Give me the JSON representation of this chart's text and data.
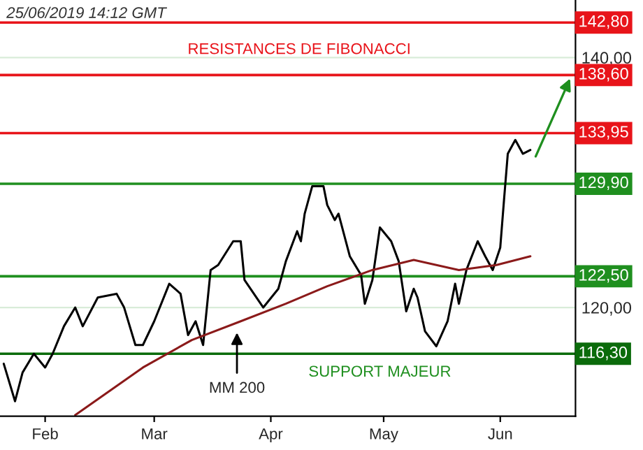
{
  "chart_data": {
    "type": "line",
    "annotations": [
      "25/06/2019 14:12 GMT",
      "RESISTANCES DE FIBONACCI",
      "SUPPORT MAJEUR",
      {
        "text": "MM 200",
        "x": "2019-04-07",
        "y": 118.3
      }
    ],
    "series": [
      {
        "color": "#000000",
        "x": [
          "2019-02-04",
          "2019-02-07",
          "2019-02-09",
          "2019-02-12",
          "2019-02-15",
          "2019-02-17",
          "2019-02-20",
          "2019-02-23",
          "2019-02-25",
          "2019-03-01",
          "2019-03-06",
          "2019-03-08",
          "2019-03-11",
          "2019-03-13",
          "2019-03-16",
          "2019-03-20",
          "2019-03-23",
          "2019-03-25",
          "2019-03-27",
          "2019-03-29",
          "2019-03-31",
          "2019-04-02",
          "2019-04-06",
          "2019-04-08",
          "2019-04-09",
          "2019-04-14",
          "2019-04-18",
          "2019-04-20",
          "2019-04-23",
          "2019-04-24",
          "2019-04-25",
          "2019-04-27",
          "2019-04-30",
          "2019-05-01",
          "2019-05-03",
          "2019-05-04",
          "2019-05-07",
          "2019-05-10",
          "2019-05-11",
          "2019-05-13",
          "2019-05-15",
          "2019-05-18",
          "2019-05-20",
          "2019-05-22",
          "2019-05-24",
          "2019-05-25",
          "2019-05-27",
          "2019-05-30",
          "2019-06-02",
          "2019-06-04",
          "2019-06-05",
          "2019-06-07",
          "2019-06-10",
          "2019-06-12",
          "2019-06-14",
          "2019-06-16",
          "2019-06-17",
          "2019-06-18",
          "2019-06-20",
          "2019-06-22",
          "2019-06-24"
        ],
        "values": [
          115.5,
          112.5,
          114.8,
          116.3,
          115.2,
          116.3,
          118.5,
          120.0,
          118.5,
          120.8,
          121.1,
          120.0,
          117.0,
          117.0,
          118.9,
          121.9,
          121.1,
          117.8,
          118.9,
          117.0,
          123.0,
          123.4,
          125.3,
          125.3,
          122.2,
          120.0,
          121.5,
          123.7,
          126.1,
          125.3,
          127.5,
          129.7,
          129.7,
          128.2,
          127.0,
          127.5,
          124.1,
          122.6,
          120.3,
          122.2,
          126.4,
          125.3,
          123.7,
          119.7,
          121.5,
          120.8,
          118.1,
          116.9,
          118.9,
          121.9,
          120.3,
          123.0,
          125.3,
          124.1,
          123.0,
          124.8,
          128.6,
          132.3,
          133.4,
          132.3,
          132.6
        ]
      },
      {
        "color": "#8b1a1a",
        "x": [
          "2019-02-23",
          "2019-03-13",
          "2019-03-26",
          "2019-04-08",
          "2019-04-20",
          "2019-05-01",
          "2019-05-13",
          "2019-05-24",
          "2019-06-05",
          "2019-06-15",
          "2019-06-24"
        ],
        "values": [
          111.4,
          115.2,
          117.4,
          118.9,
          120.3,
          121.7,
          123.0,
          123.8,
          123.0,
          123.4,
          124.1
        ]
      }
    ],
    "xlim": [
      "2019-02-03",
      "2019-07-06"
    ],
    "xticks": [
      {
        "value": "2019-02-15",
        "label": "Feb"
      },
      {
        "value": "2019-03-16",
        "label": "Mar"
      },
      {
        "value": "2019-04-16",
        "label": "Apr"
      },
      {
        "value": "2019-05-16",
        "label": "May"
      },
      {
        "value": "2019-06-16",
        "label": "Jun"
      }
    ],
    "ylim": [
      111.3,
      144.6
    ],
    "yticks": [
      {
        "value": 120,
        "label": "120,00"
      },
      {
        "value": 140,
        "label": "140,00"
      }
    ],
    "grid": "y",
    "ref_lines": [
      {
        "axis": "y",
        "value": 142.8,
        "label": "142,80",
        "color": "#e8141a"
      },
      {
        "axis": "y",
        "value": 138.6,
        "label": "138,60",
        "color": "#e8141a"
      },
      {
        "axis": "y",
        "value": 133.95,
        "label": "133,95",
        "color": "#e8141a"
      },
      {
        "axis": "y",
        "value": 129.9,
        "label": "129,90",
        "color": "#1f8f1f"
      },
      {
        "axis": "y",
        "value": 122.5,
        "label": "122,50",
        "color": "#1f8f1f"
      },
      {
        "axis": "y",
        "value": 116.3,
        "label": "116,30",
        "color": "#0b6b0b"
      }
    ]
  }
}
